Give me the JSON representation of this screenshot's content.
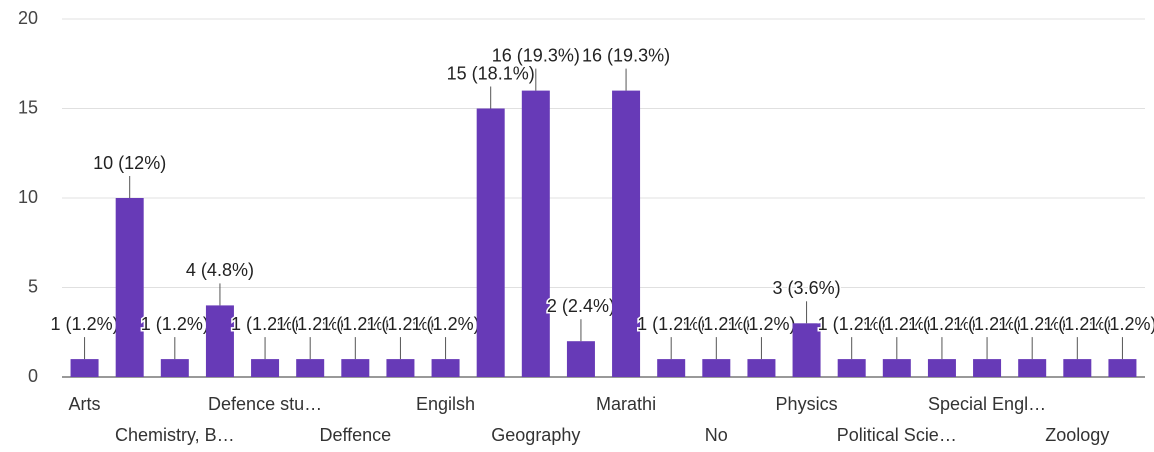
{
  "chart_data": {
    "type": "bar",
    "categories": [
      "Arts",
      null,
      "Chemistry, B…",
      null,
      "Defence stu…",
      null,
      "Deffence",
      null,
      "Engilsh",
      null,
      "Geography",
      null,
      "Marathi",
      null,
      "No",
      null,
      "Physics",
      null,
      "Political Scie…",
      null,
      "Special Engl…",
      null,
      "Zoology",
      null
    ],
    "values": [
      1,
      10,
      1,
      4,
      1,
      1,
      1,
      1,
      1,
      15,
      16,
      2,
      16,
      1,
      1,
      1,
      3,
      1,
      1,
      1,
      1,
      1,
      1,
      1
    ],
    "value_labels": [
      "1 (1.2%)",
      "10 (12%)",
      "1 (1.2%)",
      "4 (4.8%)",
      "1 (1.2%)",
      "1 (1.2%)",
      "1 (1.2%)",
      "1 (1.2%)",
      "1 (1.2%)",
      "15 (18.1%)",
      "16 (19.3%)",
      "2 (2.4%)",
      "16 (19.3%)",
      "1 (1.2%)",
      "1 (1.2%)",
      "1 (1.2%)",
      "3 (3.6%)",
      "1 (1.2%)",
      "1 (1.2%)",
      "1 (1.2%)",
      "1 (1.2%)",
      "1 (1.2%)",
      "1 (1.2%)",
      "1 (1.2%)"
    ],
    "color": "#673ab7",
    "ylim": [
      0,
      20
    ],
    "yticks": [
      0,
      5,
      10,
      15,
      20
    ],
    "grid": true
  }
}
